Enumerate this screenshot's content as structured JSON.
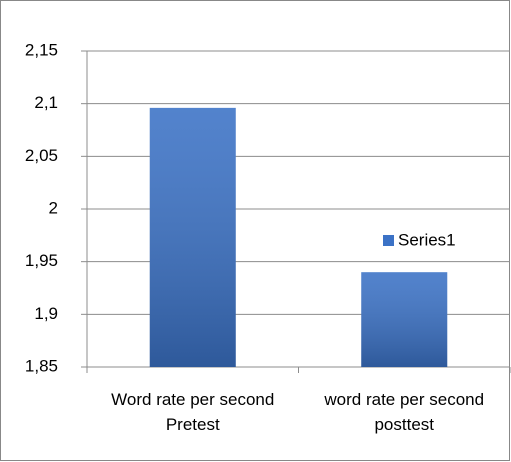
{
  "chart_data": {
    "type": "bar",
    "categories": [
      "Word rate per second Pretest",
      "word rate per second  posttest"
    ],
    "series": [
      {
        "name": "Series1",
        "color": "#3b72c6",
        "values": [
          2.096,
          1.94
        ]
      }
    ],
    "ylim": [
      1.85,
      2.15
    ],
    "yticks": [
      {
        "value": 1.85,
        "label": "1,85"
      },
      {
        "value": 1.9,
        "label": "1,9"
      },
      {
        "value": 1.95,
        "label": "1,95"
      },
      2,
      {
        "value": 2.05,
        "label": "2,05"
      },
      {
        "value": 2.1,
        "label": "2,1"
      },
      {
        "value": 2.15,
        "label": "2,15"
      }
    ],
    "grid": true,
    "legend": "right"
  }
}
